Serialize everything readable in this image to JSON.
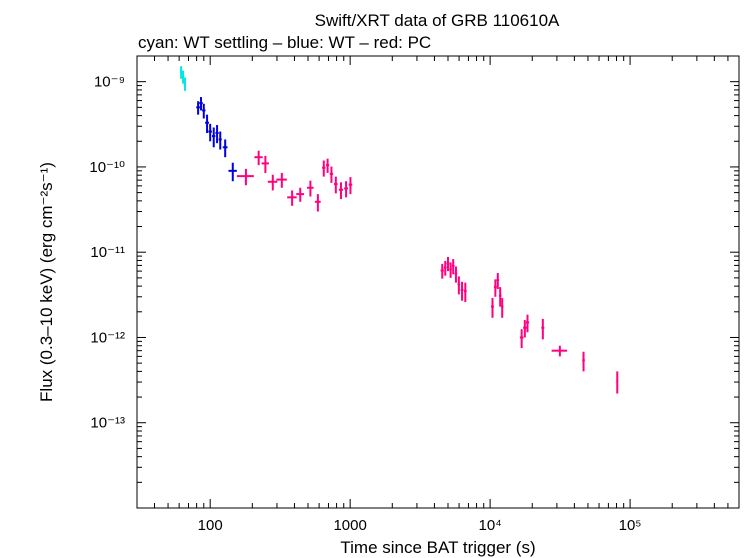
{
  "chart_data": {
    "type": "scatter",
    "title": "Swift/XRT data of GRB 110610A",
    "subtitle": "cyan: WT settling – blue: WT – red: PC",
    "xlabel": "Time since BAT trigger (s)",
    "ylabel": "Flux (0.3–10 keV) (erg cm⁻²s⁻¹)",
    "x_scale": "log",
    "y_scale": "log",
    "xlim": [
      30,
      600000
    ],
    "ylim": [
      1e-14,
      2e-09
    ],
    "grid": false,
    "x_ticks": [
      {
        "value": 100,
        "label": "100"
      },
      {
        "value": 1000,
        "label": "1000"
      },
      {
        "value": 10000,
        "label": "10⁴"
      },
      {
        "value": 100000,
        "label": "10⁵"
      }
    ],
    "y_ticks": [
      {
        "value": 1e-09,
        "label": "10⁻⁹"
      },
      {
        "value": 1e-10,
        "label": "10⁻¹⁰"
      },
      {
        "value": 1e-11,
        "label": "10⁻¹¹"
      },
      {
        "value": 1e-12,
        "label": "10⁻¹²"
      },
      {
        "value": 1e-13,
        "label": "10⁻¹³"
      }
    ],
    "series": [
      {
        "name": "WT settling",
        "color": "#00e5e5",
        "points": [
          {
            "t": 62.0,
            "dt": 1.2,
            "f": 1.3e-09,
            "df": 2.2e-10
          },
          {
            "t": 64.0,
            "dt": 1.2,
            "f": 1.15e-09,
            "df": 2e-10
          },
          {
            "t": 66.0,
            "dt": 1.2,
            "f": 9.5e-10,
            "df": 1.7e-10
          }
        ]
      },
      {
        "name": "WT",
        "color": "#0000dd",
        "points": [
          {
            "t": 82,
            "dt": 2.5,
            "f": 5e-10,
            "df": 9e-11
          },
          {
            "t": 86,
            "dt": 2.5,
            "f": 5.6e-10,
            "df": 1e-10
          },
          {
            "t": 90,
            "dt": 2.5,
            "f": 4.6e-10,
            "df": 9e-11
          },
          {
            "t": 95,
            "dt": 3,
            "f": 3.3e-10,
            "df": 8e-11
          },
          {
            "t": 100,
            "dt": 3,
            "f": 2.6e-10,
            "df": 6e-11
          },
          {
            "t": 106,
            "dt": 3,
            "f": 2.3e-10,
            "df": 6e-11
          },
          {
            "t": 112,
            "dt": 3,
            "f": 2.5e-10,
            "df": 6e-11
          },
          {
            "t": 118,
            "dt": 3,
            "f": 2.1e-10,
            "df": 5e-11
          },
          {
            "t": 128,
            "dt": 5,
            "f": 1.7e-10,
            "df": 4e-11
          },
          {
            "t": 145,
            "dt": 10,
            "f": 9e-11,
            "df": 2.2e-11
          }
        ]
      },
      {
        "name": "PC",
        "color": "#ff0080",
        "points": [
          {
            "t": 180,
            "dt": 25,
            "f": 7.8e-11,
            "df": 1.7e-11
          },
          {
            "t": 222,
            "dt": 15,
            "f": 1.3e-10,
            "df": 2.5e-11
          },
          {
            "t": 248,
            "dt": 15,
            "f": 1.1e-10,
            "df": 2.5e-11
          },
          {
            "t": 280,
            "dt": 22,
            "f": 6.7e-11,
            "df": 1.4e-11
          },
          {
            "t": 325,
            "dt": 28,
            "f": 7.1e-11,
            "df": 1.4e-11
          },
          {
            "t": 385,
            "dt": 30,
            "f": 4.4e-11,
            "df": 9e-12
          },
          {
            "t": 440,
            "dt": 28,
            "f": 4.8e-11,
            "df": 9e-12
          },
          {
            "t": 520,
            "dt": 28,
            "f": 5.7e-11,
            "df": 1.2e-11
          },
          {
            "t": 588,
            "dt": 28,
            "f": 3.9e-11,
            "df": 9e-12
          },
          {
            "t": 648,
            "dt": 18,
            "f": 9.8e-11,
            "df": 2.1e-11
          },
          {
            "t": 690,
            "dt": 18,
            "f": 1.05e-10,
            "df": 2e-11
          },
          {
            "t": 735,
            "dt": 20,
            "f": 8.3e-11,
            "df": 1.8e-11
          },
          {
            "t": 790,
            "dt": 24,
            "f": 6.3e-11,
            "df": 1.4e-11
          },
          {
            "t": 860,
            "dt": 30,
            "f": 5.4e-11,
            "df": 1.2e-11
          },
          {
            "t": 935,
            "dt": 30,
            "f": 5.6e-11,
            "df": 1.2e-11
          },
          {
            "t": 1005,
            "dt": 30,
            "f": 6.2e-11,
            "df": 1.4e-11
          },
          {
            "t": 4550,
            "dt": 120,
            "f": 6.1e-12,
            "df": 1.2e-12
          },
          {
            "t": 4780,
            "dt": 110,
            "f": 6.6e-12,
            "df": 1.3e-12
          },
          {
            "t": 5000,
            "dt": 110,
            "f": 7.4e-12,
            "df": 1.4e-12
          },
          {
            "t": 5220,
            "dt": 110,
            "f": 6.3e-12,
            "df": 1.3e-12
          },
          {
            "t": 5450,
            "dt": 110,
            "f": 6.9e-12,
            "df": 1.4e-12
          },
          {
            "t": 5700,
            "dt": 120,
            "f": 5.6e-12,
            "df": 1.2e-12
          },
          {
            "t": 5980,
            "dt": 130,
            "f": 4.2e-12,
            "df": 1e-12
          },
          {
            "t": 6300,
            "dt": 140,
            "f": 3.6e-12,
            "df": 9e-13
          },
          {
            "t": 6650,
            "dt": 150,
            "f": 3.5e-12,
            "df": 9e-13
          },
          {
            "t": 10400,
            "dt": 250,
            "f": 2.3e-12,
            "df": 6e-13
          },
          {
            "t": 10900,
            "dt": 250,
            "f": 3.9e-12,
            "df": 9e-13
          },
          {
            "t": 11350,
            "dt": 250,
            "f": 4.7e-12,
            "df": 1e-12
          },
          {
            "t": 11800,
            "dt": 250,
            "f": 3.1e-12,
            "df": 8e-13
          },
          {
            "t": 12200,
            "dt": 250,
            "f": 2.3e-12,
            "df": 6e-13
          },
          {
            "t": 16800,
            "dt": 500,
            "f": 1e-12,
            "df": 2.5e-13
          },
          {
            "t": 17700,
            "dt": 500,
            "f": 1.3e-12,
            "df": 3e-13
          },
          {
            "t": 18500,
            "dt": 500,
            "f": 1.5e-12,
            "df": 3.5e-13
          },
          {
            "t": 23800,
            "dt": 600,
            "f": 1.3e-12,
            "df": 3.5e-13
          },
          {
            "t": 31500,
            "dt": 4000,
            "f": 7e-13,
            "df": 1e-13
          },
          {
            "t": 46500,
            "dt": 1000,
            "f": 5.4e-13,
            "df": 1.4e-13
          },
          {
            "t": 81000,
            "dt": 1200,
            "f": 3.1e-13,
            "df": 9e-14
          }
        ]
      }
    ]
  }
}
